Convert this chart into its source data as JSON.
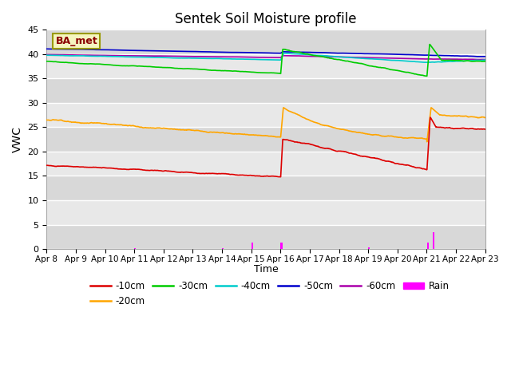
{
  "title": "Sentek Soil Moisture profile",
  "xlabel": "Time",
  "ylabel": "VWC",
  "label_text": "BA_met",
  "ylim": [
    0,
    45
  ],
  "xlim": [
    0,
    15
  ],
  "yticks": [
    0,
    5,
    10,
    15,
    20,
    25,
    30,
    35,
    40,
    45
  ],
  "xtick_labels": [
    "Apr 8",
    "Apr 9",
    "Apr 10",
    "Apr 11",
    "Apr 12",
    "Apr 13",
    "Apr 14",
    "Apr 15",
    "Apr 16",
    "Apr 17",
    "Apr 18",
    "Apr 19",
    "Apr 20",
    "Apr 21",
    "Apr 22",
    "Apr 23"
  ],
  "colors": {
    "-10cm": "#dd0000",
    "-20cm": "#ffa500",
    "-30cm": "#00cc00",
    "-40cm": "#00cccc",
    "-50cm": "#0000cc",
    "-60cm": "#aa00aa",
    "Rain": "#ff00ff"
  },
  "bg_color": "#e8e8e8",
  "grid_color": "#ffffff",
  "band_colors": [
    "#d8d8d8",
    "#e8e8e8"
  ]
}
